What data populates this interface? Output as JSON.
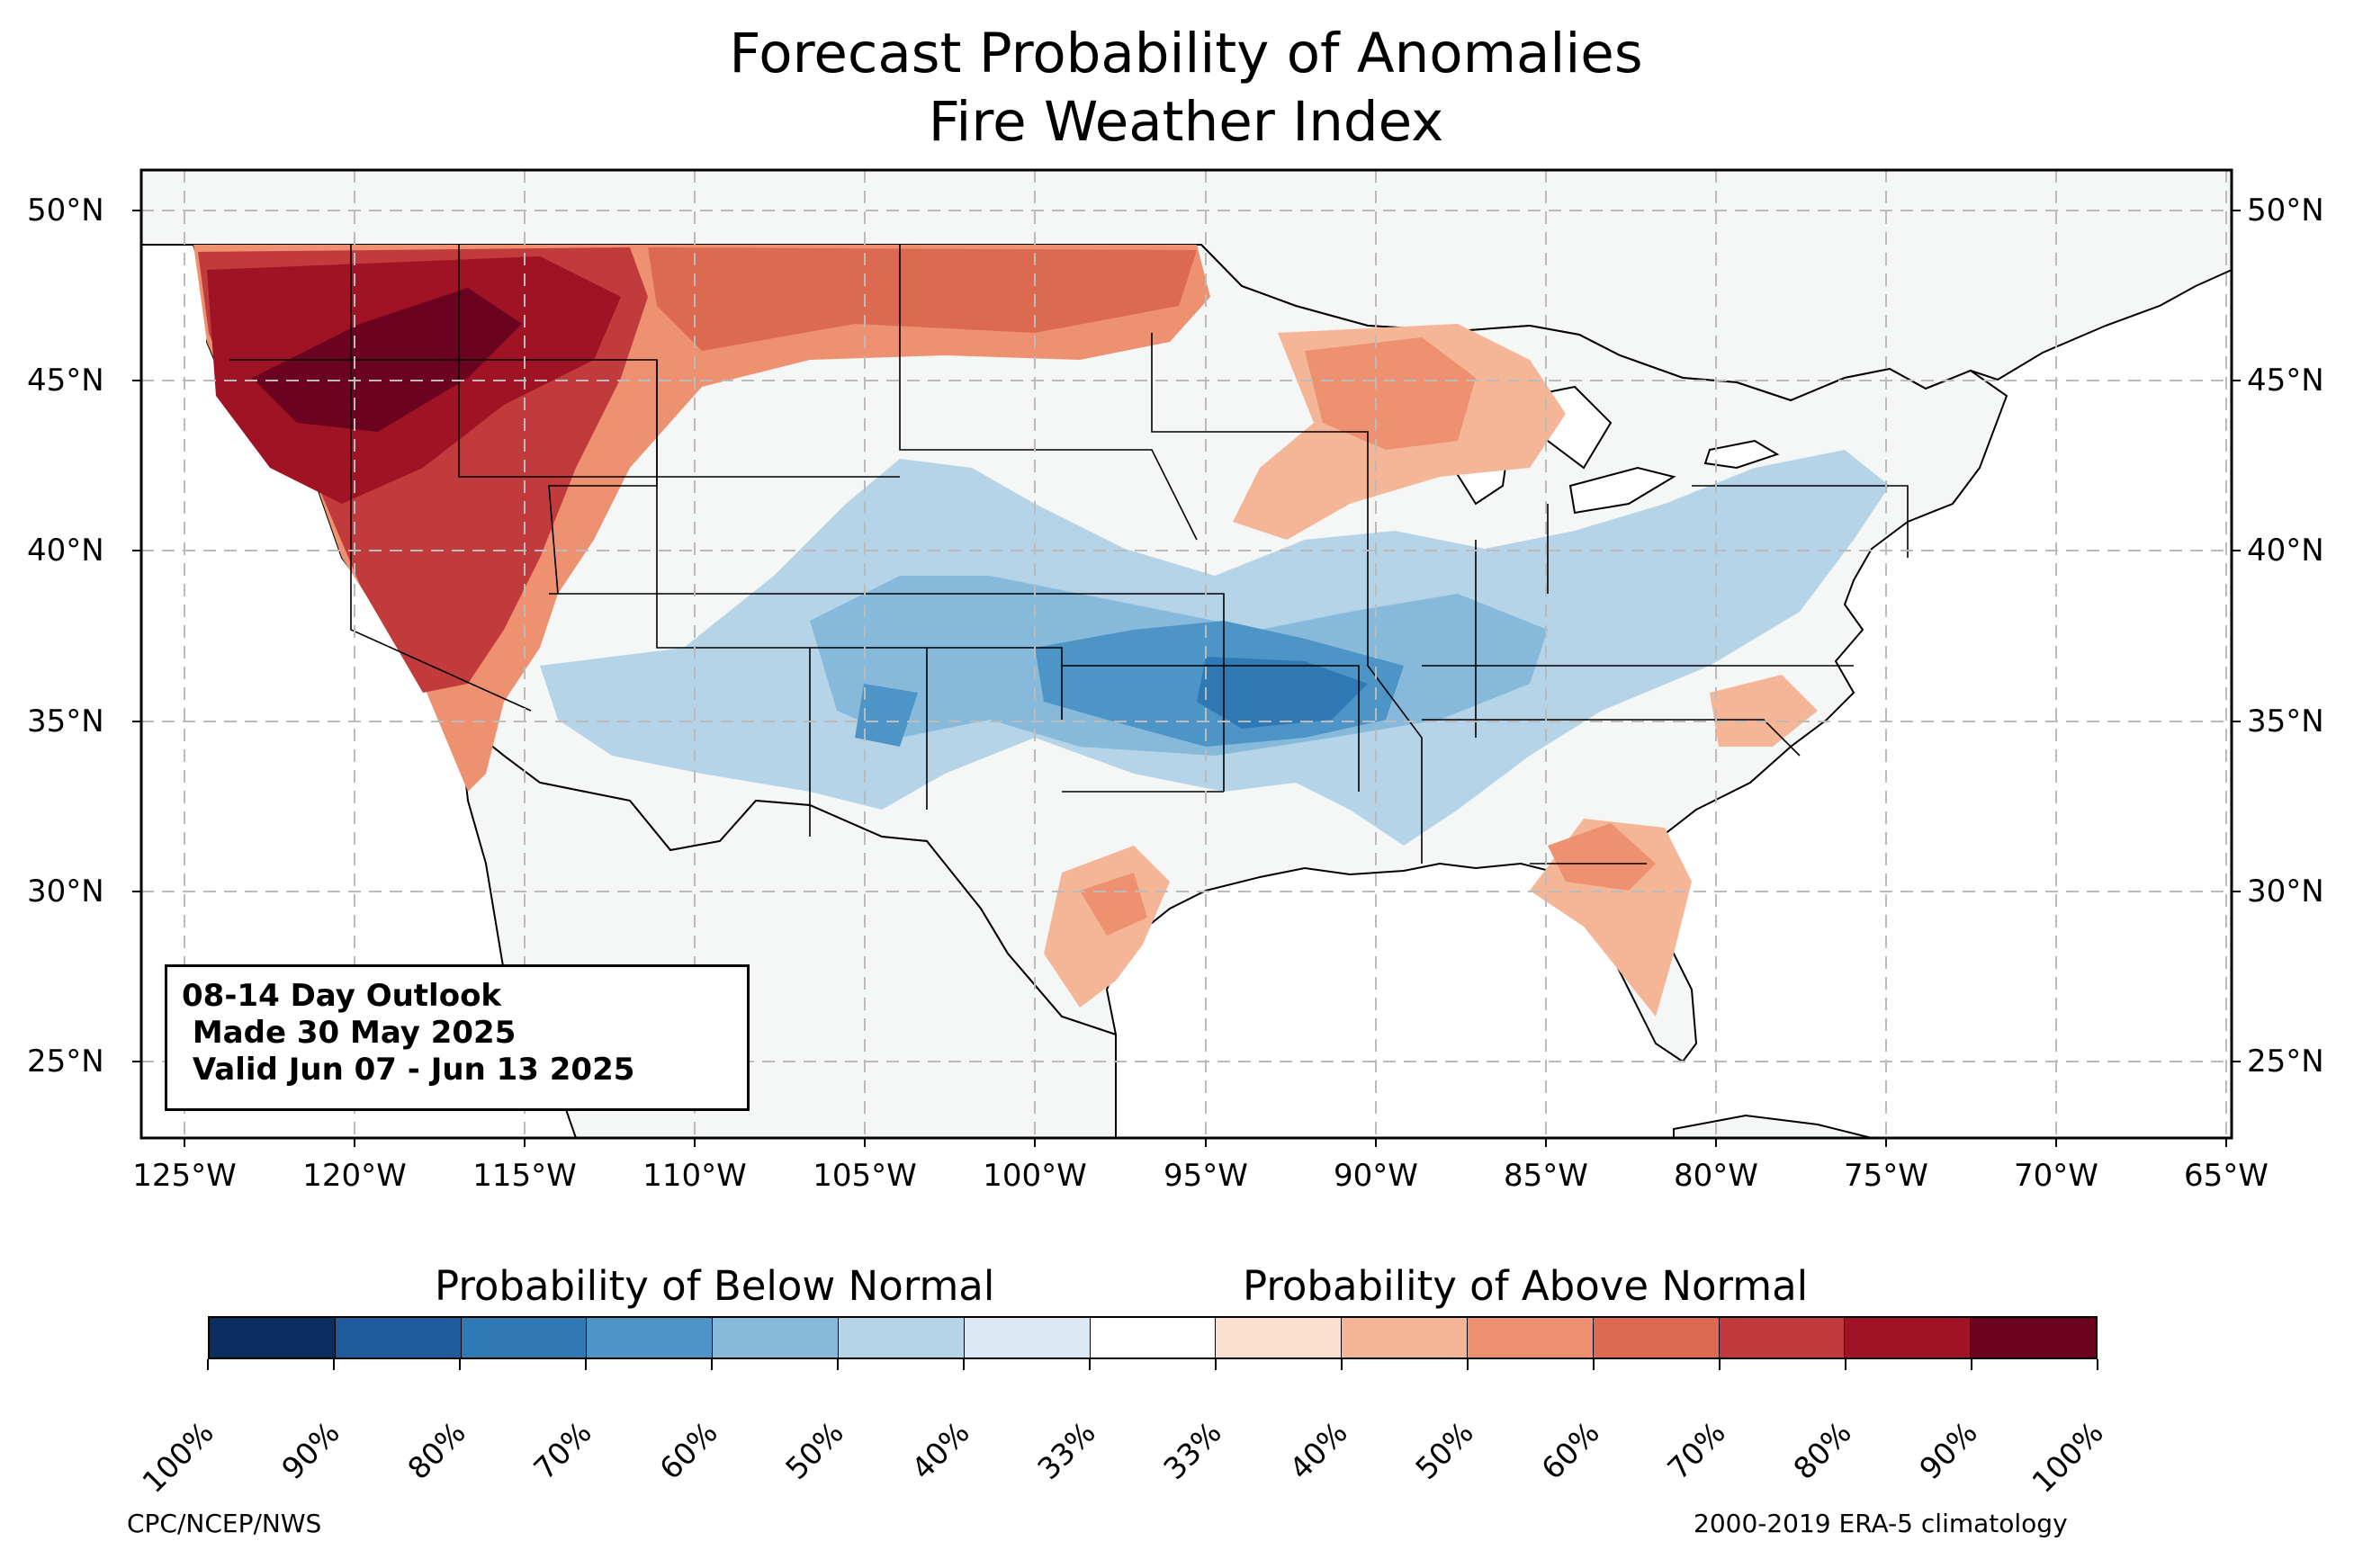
{
  "title": {
    "line1": "Forecast Probability of Anomalies",
    "line2": "Fire Weather Index"
  },
  "map": {
    "lat_labels": [
      "50°N",
      "45°N",
      "40°N",
      "35°N",
      "30°N",
      "25°N"
    ],
    "lon_labels": [
      "125°W",
      "120°W",
      "115°W",
      "110°W",
      "105°W",
      "100°W",
      "95°W",
      "90°W",
      "85°W",
      "80°W",
      "75°W",
      "70°W",
      "65°W"
    ],
    "land_color": "#f5f6f6",
    "ocean_color": "#ffffff"
  },
  "outlook_box": {
    "line1": "08-14 Day Outlook",
    "line2": " Made 30 May 2025",
    "line3": " Valid Jun 07 - Jun 13 2025"
  },
  "colorbar": {
    "below_title": "Probability of Below Normal",
    "above_title": "Probability of Above Normal",
    "tick_labels": [
      "100%",
      "90%",
      "80%",
      "70%",
      "60%",
      "50%",
      "40%",
      "33%",
      "33%",
      "40%",
      "50%",
      "60%",
      "70%",
      "80%",
      "90%",
      "100%"
    ],
    "colors": [
      "#0a2c5e",
      "#1f5a9c",
      "#2f79b5",
      "#4d94c7",
      "#86b9da",
      "#b6d4e8",
      "#dce9f4",
      "#ffffff",
      "#fbe0d0",
      "#f5b597",
      "#ee9170",
      "#dc6a50",
      "#c13b3c",
      "#9f1325",
      "#6a0220"
    ]
  },
  "credits": {
    "left": "CPC/NCEP/NWS",
    "right": "2000-2019 ERA-5 climatology"
  }
}
